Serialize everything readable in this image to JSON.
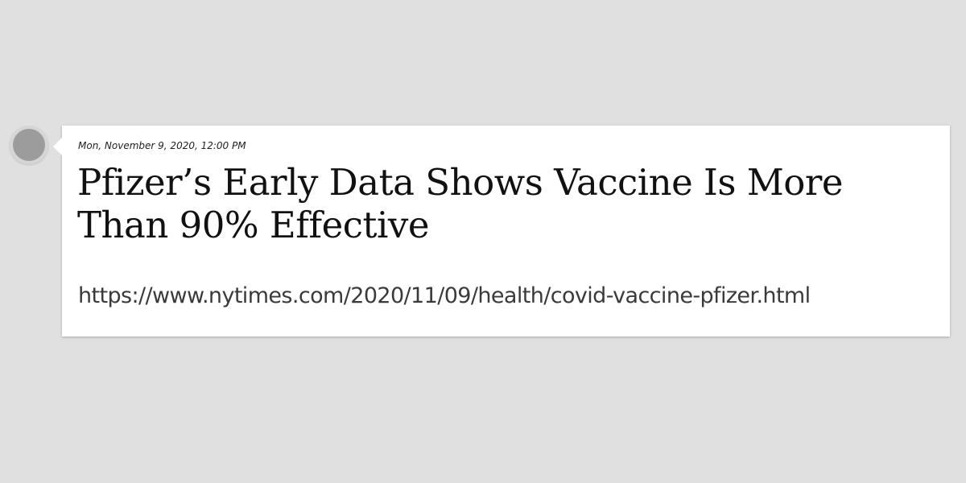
{
  "post": {
    "timestamp": "Mon, November 9, 2020, 12:00 PM",
    "headline": "Pfizer’s Early Data Shows Vaccine Is More Than 90% Effective",
    "url": "https://www.nytimes.com/2020/11/09/health/covid-vaccine-pfizer.html"
  },
  "colors": {
    "background": "#e0e0e0",
    "card": "#ffffff",
    "dot": "#9c9c9c"
  }
}
